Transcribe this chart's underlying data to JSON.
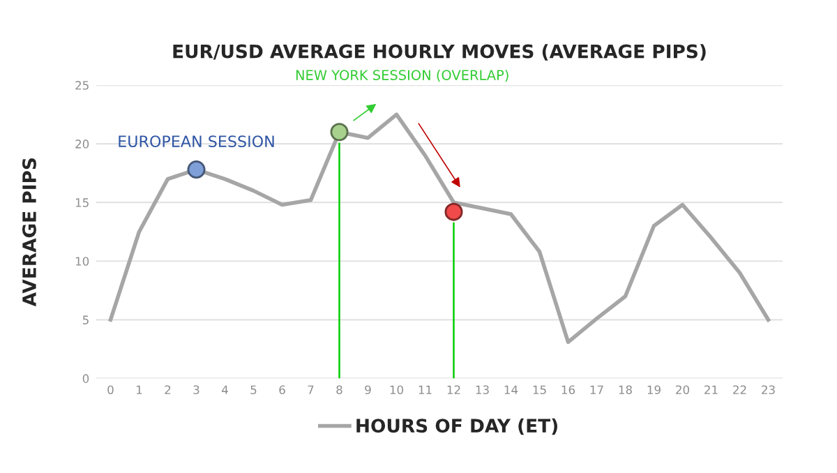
{
  "chart_data": {
    "type": "line",
    "title": "EUR/USD AVERAGE HOURLY MOVES (AVERAGE PIPS)",
    "ylabel": "AVERAGE PIPS",
    "categories": [
      "0",
      "1",
      "2",
      "3",
      "4",
      "5",
      "6",
      "7",
      "8",
      "9",
      "10",
      "11",
      "12",
      "13",
      "14",
      "15",
      "16",
      "17",
      "18",
      "19",
      "20",
      "21",
      "22",
      "23"
    ],
    "series": [
      {
        "name": "HOURS OF DAY (ET)",
        "marker": "none",
        "color": "#a6a6a6",
        "values": [
          5,
          12.5,
          17,
          17.8,
          17,
          16,
          14.8,
          15.2,
          21,
          20.5,
          22.5,
          19,
          15,
          14.5,
          14,
          10.8,
          3.1,
          5.1,
          7,
          13,
          14.8,
          12,
          9,
          5
        ]
      },
      {
        "type": "bar",
        "color": "#00cc00",
        "x": [
          "8",
          "12"
        ],
        "values": [
          20.1,
          13.3
        ]
      },
      {
        "type": "scatter",
        "marker": "circle",
        "color": "#7f9fd8",
        "x": [
          "3"
        ],
        "values": [
          17.8
        ]
      },
      {
        "type": "scatter",
        "marker": "circle",
        "color": "#a9d18e",
        "x": [
          "8"
        ],
        "values": [
          21
        ]
      },
      {
        "type": "scatter",
        "marker": "circle",
        "color": "#f04a4a",
        "x": [
          "12"
        ],
        "values": [
          14.2
        ]
      }
    ],
    "annotations": [
      {
        "text": "EUROPEAN SESSION",
        "x": "3",
        "y": 17.8
      },
      "NEW YORK SESSION (OVERLAP)"
    ],
    "ylim": [
      0,
      25
    ],
    "yticks": [
      0,
      5,
      10,
      15,
      20,
      25
    ],
    "grid": "y",
    "legend": "bottom"
  }
}
